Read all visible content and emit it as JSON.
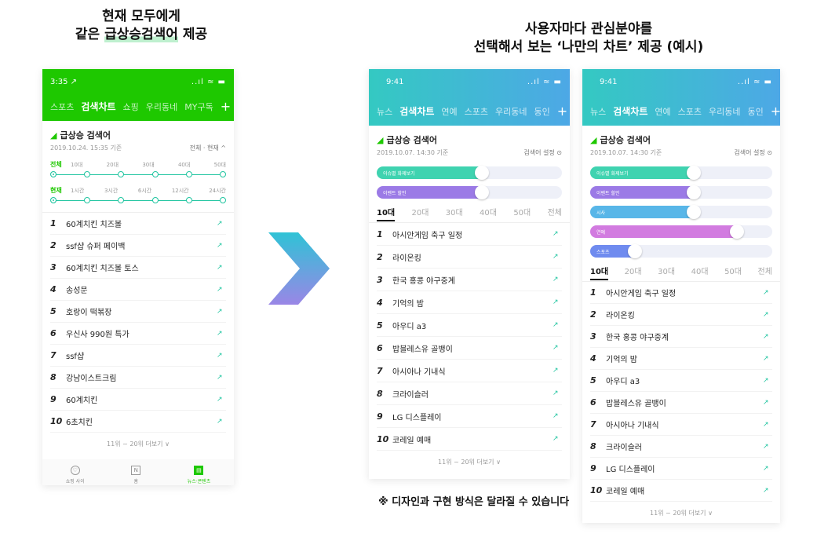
{
  "caption_left": {
    "line1": "현재 모두에게",
    "line2_pre": "같은 ",
    "line2_u": "급상승검색어",
    "line2_post": " 제공"
  },
  "caption_right": {
    "line1": "사용자마다 관심분야를",
    "line2": "선택해서 보는 ‘나만의 차트’ 제공 (예시)"
  },
  "note": "※ 디자인과 구현 방식은 달라질 수 있습니다",
  "colors": {
    "naver_green": "#1ec800",
    "teal": "#20c5a0",
    "gradient_start": "#34c9c2",
    "gradient_end": "#4da8e6"
  },
  "phone1": {
    "status_time": "3:35 ↗",
    "status_icons": "..ıl ≈ ▬",
    "tabs": [
      "스포츠",
      "검색차트",
      "쇼핑",
      "우리동네",
      "MY구독"
    ],
    "active_tab": "검색차트",
    "section_title": "급상승 검색어",
    "timestamp": "2019.10.24. 15:35 기준",
    "filter_toggle": "전체 · 현재 ^",
    "age_label": "전체",
    "age_options": [
      "10대",
      "20대",
      "30대",
      "40대",
      "50대"
    ],
    "time_label": "현재",
    "time_options": [
      "1시간",
      "3시간",
      "6시간",
      "12시간",
      "24시간"
    ],
    "items": [
      "60계치킨 치즈볼",
      "ssf샵 슈퍼 페이백",
      "60계치킨 치즈볼 토스",
      "송성문",
      "호랑이 떡볶장",
      "우신사 990원 특가",
      "ssf샵",
      "강남이스트크림",
      "60계치킨",
      "6초치킨"
    ],
    "more": "11위 ~ 20위 더보기 ∨",
    "nav": [
      "쇼핑 사이",
      "홈",
      "뉴스·콘텐츠"
    ]
  },
  "phone2": {
    "status_time": "9:41",
    "status_icons": "..ıl ≈ ▬",
    "tabs": [
      "뉴스",
      "검색차트",
      "연예",
      "스포츠",
      "우리동네",
      "동인"
    ],
    "active_tab": "검색차트",
    "section_title": "급상승 검색어",
    "timestamp": "2019.10.07. 14:30 기준",
    "setting": "검색어 설정 ⊙",
    "toggles": [
      {
        "label": "이슈별 화제보기",
        "level": 0.58,
        "color": "#3fd3b0"
      },
      {
        "label": "이벤트 할인",
        "level": 0.58,
        "color": "#9b7ae6"
      }
    ],
    "age_tabs": [
      "10대",
      "20대",
      "30대",
      "40대",
      "50대",
      "전체"
    ],
    "items": [
      "아시안게임 축구 일정",
      "라이온킹",
      "한국 홍콩 야구중계",
      "기억의 밤",
      "아우디 a3",
      "밥블레스유 골뱅이",
      "아시아나 기내식",
      "크라이슬러",
      "LG 디스플레이",
      "코레일 예매"
    ],
    "more": "11위 ~ 20위 더보기 ∨"
  },
  "phone3": {
    "status_time": "9:41",
    "status_icons": "..ıl ≈ ▬",
    "tabs": [
      "뉴스",
      "검색차트",
      "연예",
      "스포츠",
      "우리동네",
      "동인"
    ],
    "active_tab": "검색차트",
    "section_title": "급상승 검색어",
    "timestamp": "2019.10.07. 14:30 기준",
    "setting": "검색어 설정 ⊙",
    "toggles": [
      {
        "label": "이슈별 화제보기",
        "level": 0.58,
        "color": "#3fd3b0"
      },
      {
        "label": "이벤트 할인",
        "level": 0.58,
        "color": "#9b7ae6"
      },
      {
        "label": "시사",
        "level": 0.58,
        "color": "#58b6e8"
      },
      {
        "label": "연예",
        "level": 0.82,
        "color": "#d27be0"
      },
      {
        "label": "스포츠",
        "level": 0.26,
        "color": "#6f8bef"
      }
    ],
    "age_tabs": [
      "10대",
      "20대",
      "30대",
      "40대",
      "50대",
      "전체"
    ],
    "items": [
      "아시안게임 축구 일정",
      "라이온킹",
      "한국 홍콩 야구중계",
      "기억의 밤",
      "아우디 a3",
      "밥블레스유 골뱅이",
      "아시아나 기내식",
      "크라이슬러",
      "LG 디스플레이",
      "코레일 예매"
    ],
    "more": "11위 ~ 20위 더보기 ∨"
  }
}
